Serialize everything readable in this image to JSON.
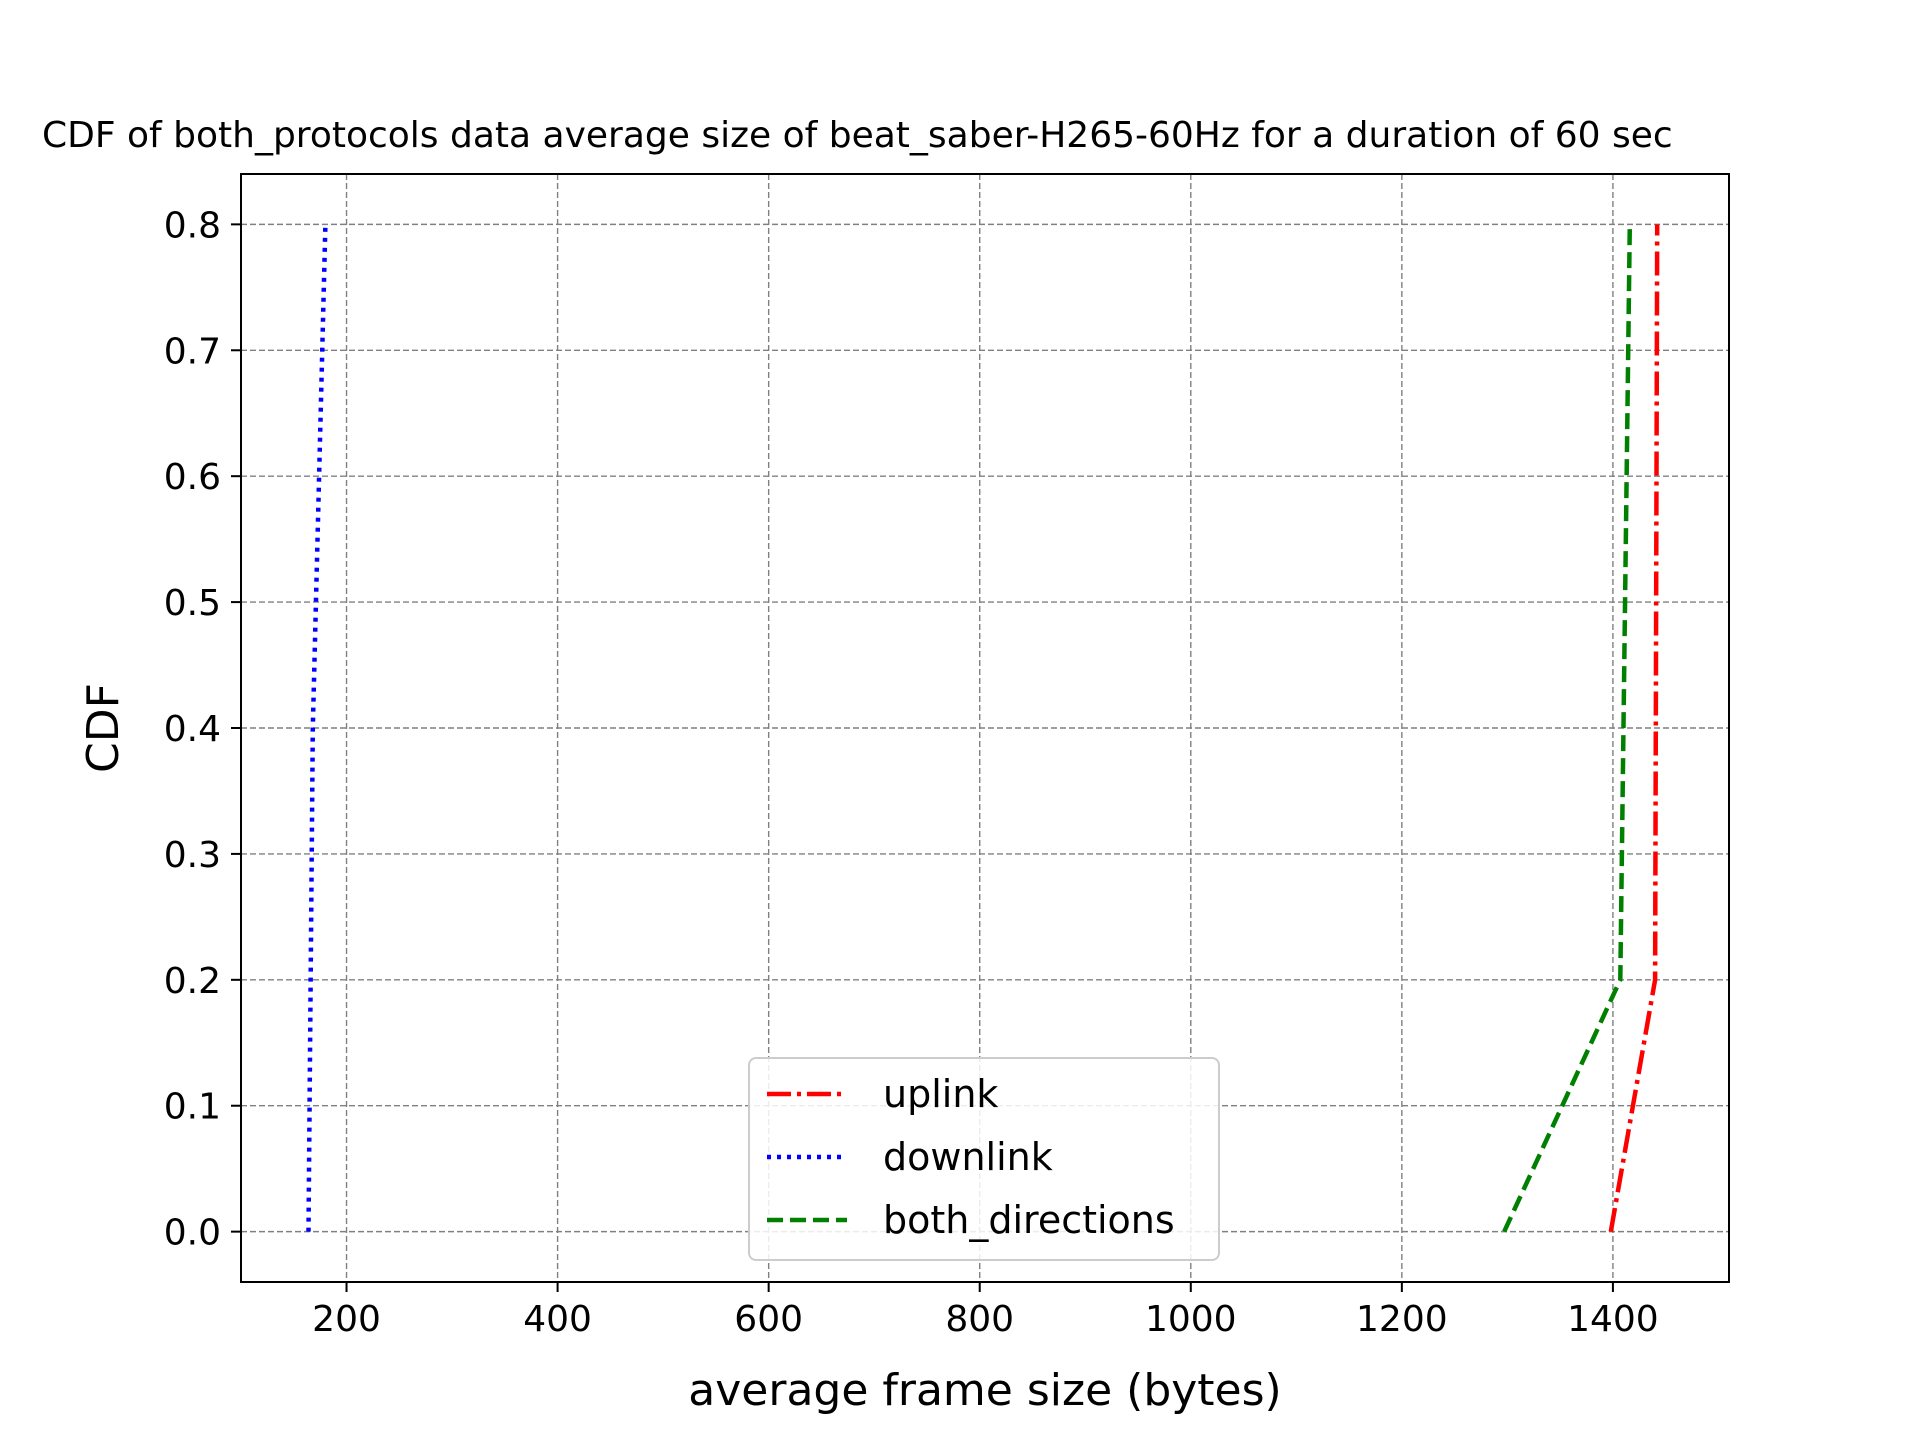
{
  "chart_data": {
    "type": "line",
    "title": "CDF of both_protocols data average size of beat_saber-H265-60Hz for a duration of 60 sec",
    "xlabel": "average frame size (bytes)",
    "ylabel": "CDF",
    "xlim": [
      100,
      1510
    ],
    "ylim": [
      -0.04,
      0.84
    ],
    "xticks": [
      200,
      400,
      600,
      800,
      1000,
      1200,
      1400
    ],
    "yticks": [
      0.0,
      0.1,
      0.2,
      0.3,
      0.4,
      0.5,
      0.6,
      0.7,
      0.8
    ],
    "xtick_labels": [
      "200",
      "400",
      "600",
      "800",
      "1000",
      "1200",
      "1400"
    ],
    "ytick_labels": [
      "0.0",
      "0.1",
      "0.2",
      "0.3",
      "0.4",
      "0.5",
      "0.6",
      "0.7",
      "0.8"
    ],
    "grid": true,
    "legend_position": "lower center",
    "series": [
      {
        "name": "uplink",
        "color": "#ff0000",
        "style": "dashdot",
        "x": [
          1398,
          1440,
          1442
        ],
        "y": [
          0.0,
          0.2,
          0.8
        ]
      },
      {
        "name": "downlink",
        "color": "#0000ff",
        "style": "dotted",
        "x": [
          164,
          168,
          180
        ],
        "y": [
          0.0,
          0.4,
          0.8
        ]
      },
      {
        "name": "both_directions",
        "color": "#008000",
        "style": "dashed",
        "x": [
          1297,
          1407,
          1416
        ],
        "y": [
          0.0,
          0.2,
          0.8
        ]
      }
    ]
  }
}
